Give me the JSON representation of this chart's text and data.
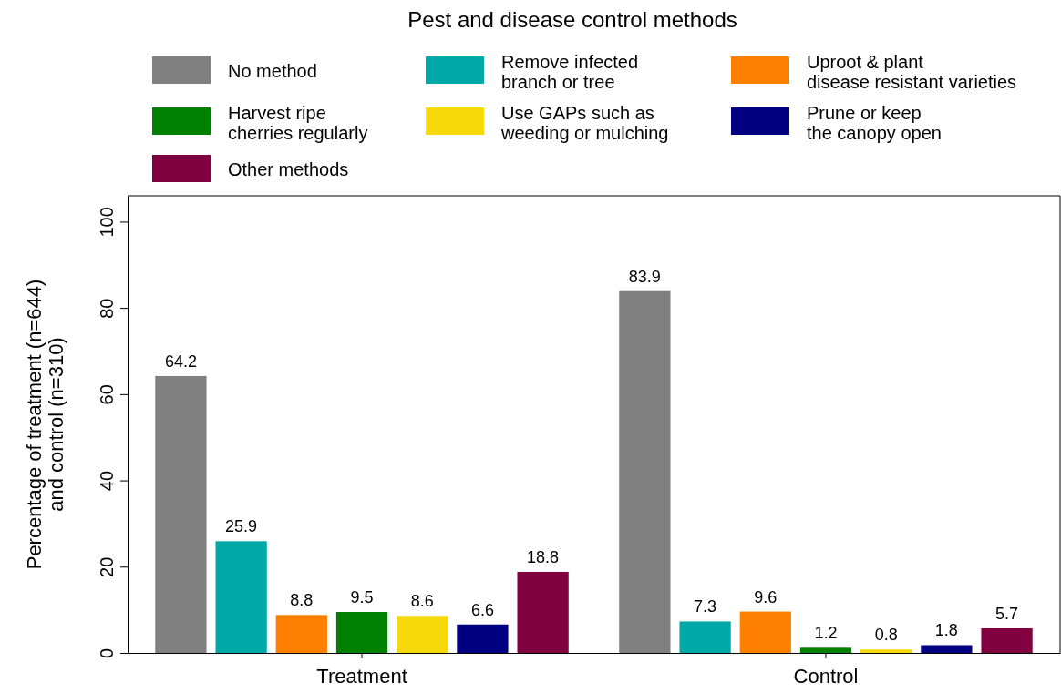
{
  "chart_data": {
    "type": "bar",
    "title": "Pest and disease control methods",
    "ylabel": "Percentage of treatment (n=644)\nand control (n=310)",
    "categories": [
      "Treatment",
      "Control"
    ],
    "series": [
      {
        "name": "No method",
        "color": "#808080",
        "values": [
          64.2,
          83.9
        ]
      },
      {
        "name": "Remove infected\nbranch or tree",
        "color": "#00a8a8",
        "values": [
          25.9,
          7.3
        ]
      },
      {
        "name": "Uproot & plant\ndisease resistant varieties",
        "color": "#ff8000",
        "values": [
          8.8,
          9.6
        ]
      },
      {
        "name": "Harvest ripe\ncherries regularly",
        "color": "#008000",
        "values": [
          9.5,
          1.2
        ]
      },
      {
        "name": "Use GAPs such as\nweeding or mulching",
        "color": "#f5d90a",
        "values": [
          8.6,
          0.8
        ]
      },
      {
        "name": "Prune or keep\nthe canopy open",
        "color": "#000080",
        "values": [
          6.6,
          1.8
        ]
      },
      {
        "name": "Other methods",
        "color": "#800040",
        "values": [
          18.8,
          5.7
        ]
      }
    ],
    "ylim": [
      0,
      106
    ],
    "yticks": [
      0,
      20,
      40,
      60,
      80,
      100
    ],
    "grid": false,
    "legend": "top",
    "data_labels": true
  }
}
